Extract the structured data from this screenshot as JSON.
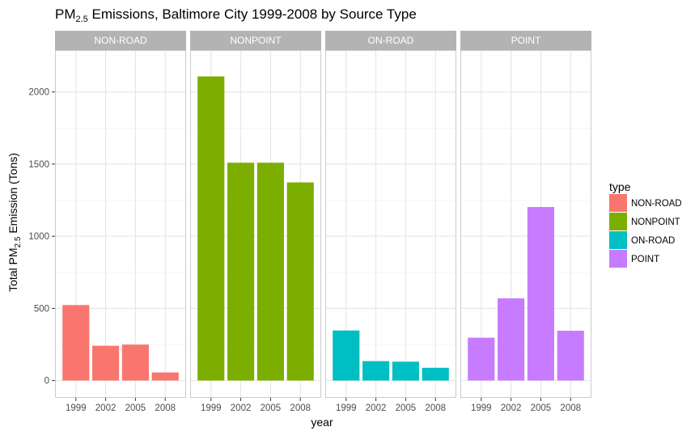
{
  "chart_data": {
    "type": "bar",
    "title_parts": [
      "PM",
      "2.5",
      " Emissions, Baltimore City 1999-2008 by Source Type"
    ],
    "xlabel": "year",
    "ylabel_parts": [
      "Total PM",
      "2.5",
      " Emission (Tons)"
    ],
    "ylim": [
      -120,
      2290
    ],
    "y_ticks": [
      0,
      500,
      1000,
      1500,
      2000
    ],
    "y_tick_labels": [
      "0",
      "500",
      "1000",
      "1500",
      "2000"
    ],
    "categories": [
      "1999",
      "2002",
      "2005",
      "2008"
    ],
    "grid": true,
    "legend": {
      "title": "type",
      "placement": "right"
    },
    "facets": [
      {
        "name": "NON-ROAD",
        "color": "#F8766D",
        "values": [
          522.9,
          240.8,
          248.9,
          55.8
        ]
      },
      {
        "name": "NONPOINT",
        "color": "#7CAE00",
        "values": [
          2107.6,
          1509.5,
          1509.5,
          1373.2
        ]
      },
      {
        "name": "ON-ROAD",
        "color": "#00BFC4",
        "values": [
          346.8,
          134.3,
          130.4,
          88.3
        ]
      },
      {
        "name": "POINT",
        "color": "#C77CFF",
        "values": [
          296.8,
          569.3,
          1202.5,
          344.98
        ]
      }
    ]
  }
}
